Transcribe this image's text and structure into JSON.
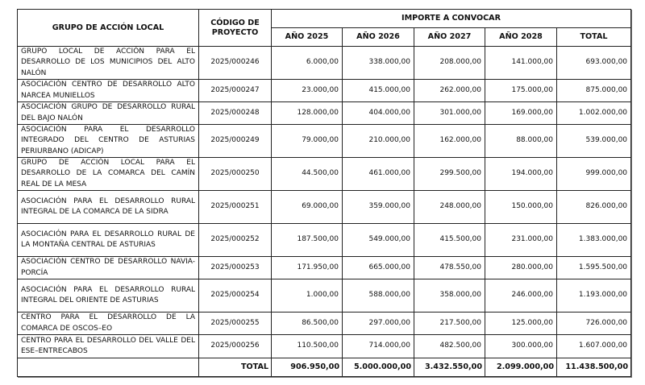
{
  "headers": {
    "group": "GRUPO DE ACCIÓN LOCAL",
    "code": "CÓDIGO DE PROYECTO",
    "amount": "IMPORTE A CONVOCAR",
    "years": [
      "AÑO 2025",
      "AÑO 2026",
      "AÑO 2027",
      "AÑO 2028",
      "TOTAL"
    ]
  },
  "rows": [
    {
      "name": "GRUPO LOCAL DE ACCIÓN PARA EL DESARROLLO DE LOS MUNICIPIOS DEL ALTO NALÓN",
      "code": "2025/000246",
      "values": [
        "6.000,00",
        "338.000,00",
        "208.000,00",
        "141.000,00",
        "693.000,00"
      ]
    },
    {
      "name": "ASOCIACIÓN CENTRO DE DESARROLLO ALTO NARCEA MUNIELLOS",
      "code": "2025/000247",
      "values": [
        "23.000,00",
        "415.000,00",
        "262.000,00",
        "175.000,00",
        "875.000,00"
      ]
    },
    {
      "name": "ASOCIACIÓN GRUPO DE DESARROLLO RURAL DEL BAJO NALÓN",
      "code": "2025/000248",
      "values": [
        "128.000,00",
        "404.000,00",
        "301.000,00",
        "169.000,00",
        "1.002.000,00"
      ]
    },
    {
      "name": "ASOCIACIÓN PARA EL DESARROLLO INTEGRADO DEL CENTRO DE ASTURIAS PERIURBANO (ADICAP)",
      "code": "2025/000249",
      "values": [
        "79.000,00",
        "210.000,00",
        "162.000,00",
        "88.000,00",
        "539.000,00"
      ]
    },
    {
      "name": "GRUPO DE ACCIÓN LOCAL PARA EL DESARROLLO DE LA COMARCA DEL CAMÍN REAL DE LA MESA",
      "code": "2025/000250",
      "values": [
        "44.500,00",
        "461.000,00",
        "299.500,00",
        "194.000,00",
        "999.000,00"
      ]
    },
    {
      "name": "ASOCIACIÓN PARA EL DESARROLLO RURAL INTEGRAL DE LA COMARCA DE LA SIDRA",
      "code": "2025/000251",
      "values": [
        "69.000,00",
        "359.000,00",
        "248.000,00",
        "150.000,00",
        "826.000,00"
      ]
    },
    {
      "name": "ASOCIACIÓN PARA EL DESARROLLO RURAL DE LA MONTAÑA CENTRAL DE ASTURIAS",
      "code": "2025/000252",
      "values": [
        "187.500,00",
        "549.000,00",
        "415.500,00",
        "231.000,00",
        "1.383.000,00"
      ]
    },
    {
      "name": "ASOCIACIÓN CENTRO DE DESARROLLO NAVIA-PORCÍA",
      "code": "2025/000253",
      "values": [
        "171.950,00",
        "665.000,00",
        "478.550,00",
        "280.000,00",
        "1.595.500,00"
      ]
    },
    {
      "name": "ASOCIACIÓN PARA EL DESARROLLO RURAL INTEGRAL DEL ORIENTE DE ASTURIAS",
      "code": "2025/000254",
      "values": [
        "1.000,00",
        "588.000,00",
        "358.000,00",
        "246.000,00",
        "1.193.000,00"
      ]
    },
    {
      "name": "CENTRO PARA EL DESARROLLO DE LA COMARCA DE OSCOS–EO",
      "code": "2025/000255",
      "values": [
        "86.500,00",
        "297.000,00",
        "217.500,00",
        "125.000,00",
        "726.000,00"
      ]
    },
    {
      "name": "CENTRO PARA EL DESARROLLO DEL VALLE DEL ESE–ENTRECABOS",
      "code": "2025/000256",
      "values": [
        "110.500,00",
        "714.000,00",
        "482.500,00",
        "300.000,00",
        "1.607.000,00"
      ]
    }
  ],
  "total": {
    "label": "TOTAL",
    "values": [
      "906.950,00",
      "5.000.000,00",
      "3.432.550,00",
      "2.099.000,00",
      "11.438.500,00"
    ]
  }
}
